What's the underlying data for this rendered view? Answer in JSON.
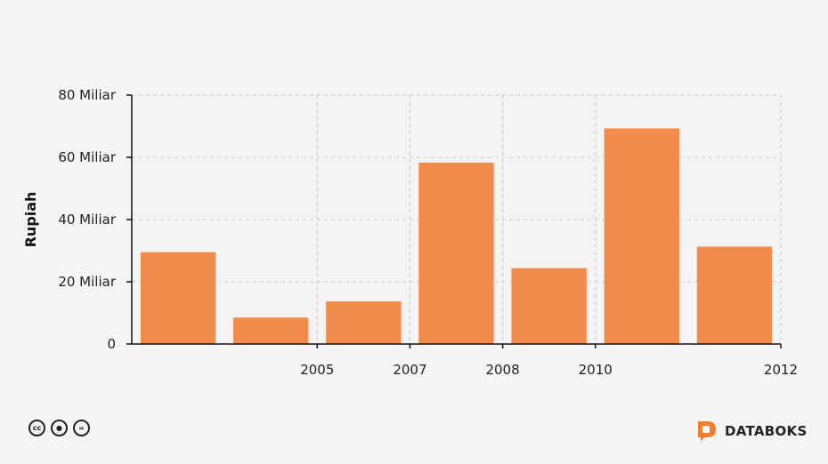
{
  "chart_data": {
    "type": "bar",
    "categories": [
      "",
      "2005",
      "2007",
      "2008",
      "2010",
      "",
      "2012"
    ],
    "values": [
      29500000000,
      8500000000,
      13700000000,
      58300000000,
      24400000000,
      69300000000,
      31300000000
    ],
    "ylabel": "Rupiah",
    "xlabel": "",
    "ylim": [
      0,
      80000000000
    ],
    "yticks": [
      0,
      20000000000,
      40000000000,
      60000000000,
      80000000000
    ],
    "ytick_labels": [
      "0",
      "20 Miliar",
      "40 Miliar",
      "60 Miliar",
      "80 Miliar"
    ],
    "grid": true,
    "colors": {
      "bar": "#f28b4c"
    }
  },
  "footer": {
    "license_icons": [
      "cc-icon",
      "by-icon",
      "nd-icon"
    ],
    "license_glyphs": {
      "cc": "cc",
      "by": "●",
      "nd": "="
    },
    "brand": "DATABOKS",
    "brand_color": "#f07f2e"
  }
}
